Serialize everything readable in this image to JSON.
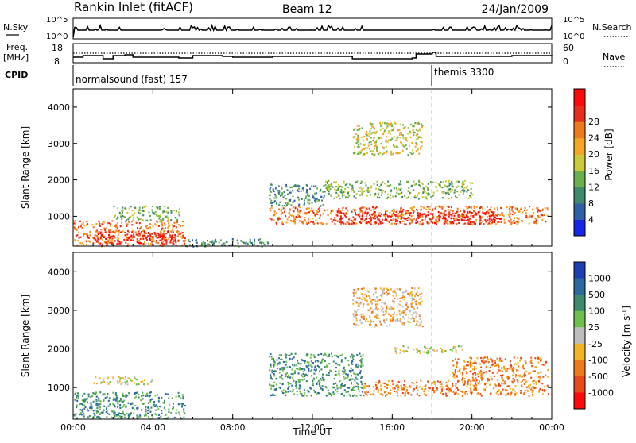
{
  "header": {
    "station": "Rankin Inlet (fitACF)",
    "beam": "Beam 12",
    "date": "24/Jan/2009"
  },
  "top_panels": {
    "nsky_label": "N.Sky",
    "nsky_ticks": [
      "10^5",
      "10^0"
    ],
    "nsearch_label": "N.Search",
    "nsearch_ticks": [
      "10^5",
      "10^0"
    ],
    "freq_label": "Freq.",
    "freq_unit": "[MHz]",
    "freq_ticks": [
      "18",
      "8"
    ],
    "nave_label": "Nave",
    "nave_ticks": [
      "60",
      "0"
    ],
    "cpid_label": "CPID",
    "cpid_modes": [
      {
        "name": "normalsound (fast) 157",
        "start_hour": 0
      },
      {
        "name": "themis 3300",
        "start_hour": 18
      }
    ]
  },
  "chart_data": [
    {
      "type": "heatmap",
      "name": "power",
      "x": {
        "label": "Time UT",
        "range": [
          0,
          24
        ],
        "ticks": [
          "00:00",
          "04:00",
          "08:00",
          "12:00",
          "16:00",
          "20:00",
          "00:00"
        ]
      },
      "y": {
        "label": "Slant Range [km]",
        "range": [
          180,
          4500
        ],
        "ticks": [
          1000,
          2000,
          3000,
          4000
        ]
      },
      "colorbar": {
        "label": "Power [dB]",
        "ticks": [
          "4",
          "8",
          "12",
          "16",
          "20",
          "24",
          "28"
        ],
        "colors": [
          "#1426e8",
          "#2f5fa6",
          "#3f8a6a",
          "#6cb04b",
          "#c9c93a",
          "#f5a623",
          "#ef7a1a",
          "#e82e1a",
          "#ff0a0a"
        ]
      },
      "regions": [
        {
          "t": [
            0.0,
            5.6
          ],
          "r": [
            200,
            900
          ],
          "level": 6
        },
        {
          "t": [
            1.0,
            5.2
          ],
          "r": [
            250,
            600
          ],
          "level": 8
        },
        {
          "t": [
            2.0,
            5.3
          ],
          "r": [
            900,
            1300
          ],
          "level": 3
        },
        {
          "t": [
            9.8,
            23.8
          ],
          "r": [
            800,
            1300
          ],
          "level": 6
        },
        {
          "t": [
            13.0,
            21.5
          ],
          "r": [
            800,
            1150
          ],
          "level": 8
        },
        {
          "t": [
            9.8,
            12.5
          ],
          "r": [
            1300,
            1900
          ],
          "level": 2
        },
        {
          "t": [
            12.5,
            20.0
          ],
          "r": [
            1500,
            2000
          ],
          "level": 3
        },
        {
          "t": [
            14.0,
            17.5
          ],
          "r": [
            2700,
            3600
          ],
          "level": 4
        },
        {
          "t": [
            5.5,
            9.8
          ],
          "r": [
            180,
            400
          ],
          "level": 2
        }
      ]
    },
    {
      "type": "heatmap",
      "name": "velocity",
      "x": {
        "label": "Time UT",
        "range": [
          0,
          24
        ],
        "ticks": [
          "00:00",
          "04:00",
          "08:00",
          "12:00",
          "16:00",
          "20:00",
          "00:00"
        ]
      },
      "y": {
        "label": "Slant Range [km]",
        "range": [
          180,
          4500
        ],
        "ticks": [
          1000,
          2000,
          3000,
          4000
        ]
      },
      "colorbar": {
        "label": "Velocity [m s^-1]",
        "ticks": [
          "1000",
          "500",
          "100",
          "25",
          "-25",
          "-100",
          "-500",
          "-1000"
        ],
        "colors": [
          "#1e3fb4",
          "#2a6a9e",
          "#3f8a6a",
          "#6cc04b",
          "#bdbdbd",
          "#f5b323",
          "#ef7a1a",
          "#e84a1a",
          "#ff0a0a"
        ]
      },
      "regions": [
        {
          "t": [
            0.0,
            5.6
          ],
          "r": [
            200,
            900
          ],
          "level": 2
        },
        {
          "t": [
            1.0,
            4.0
          ],
          "r": [
            1100,
            1300
          ],
          "level": 4
        },
        {
          "t": [
            9.8,
            14.5
          ],
          "r": [
            800,
            1900
          ],
          "level": 2
        },
        {
          "t": [
            14.5,
            23.8
          ],
          "r": [
            800,
            1200
          ],
          "level": 6
        },
        {
          "t": [
            19.0,
            23.8
          ],
          "r": [
            1200,
            1800
          ],
          "level": 6
        },
        {
          "t": [
            14.0,
            17.5
          ],
          "r": [
            2600,
            3600
          ],
          "level": 5
        },
        {
          "t": [
            16.0,
            19.5
          ],
          "r": [
            1900,
            2100
          ],
          "level": 4
        }
      ]
    }
  ]
}
